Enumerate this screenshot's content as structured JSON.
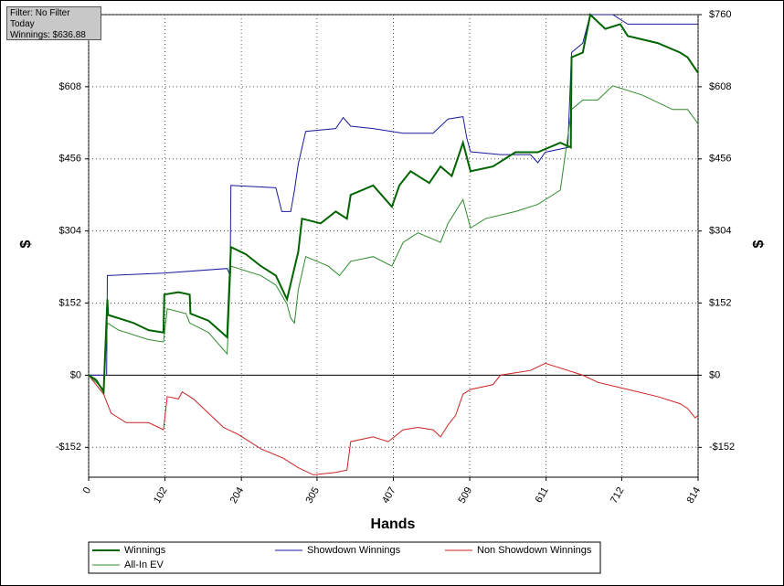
{
  "info": {
    "filter": "Filter: No Filter",
    "period": "Today",
    "winnings": "Winnings: $636.88"
  },
  "chart_data": {
    "type": "line",
    "xlabel": "Hands",
    "ylabel": "$",
    "y2label": "$",
    "xlim": [
      0,
      814
    ],
    "xticks": [
      0,
      102,
      204,
      305,
      407,
      509,
      611,
      712,
      814
    ],
    "ylim": [
      -215,
      760
    ],
    "yticks": [
      {
        "value": -152,
        "label": "-$152"
      },
      {
        "value": 0,
        "label": "$0"
      },
      {
        "value": 152,
        "label": "$152"
      },
      {
        "value": 304,
        "label": "$304"
      },
      {
        "value": 456,
        "label": "$456"
      },
      {
        "value": 608,
        "label": "$608"
      },
      {
        "value": 760,
        "label": "$760"
      }
    ],
    "y2lim": [
      -215,
      760
    ],
    "y2ticks": [
      {
        "value": -152,
        "label": "-$152"
      },
      {
        "value": 0,
        "label": "$0"
      },
      {
        "value": 152,
        "label": "$152"
      },
      {
        "value": 304,
        "label": "$304"
      },
      {
        "value": 456,
        "label": "$456"
      },
      {
        "value": 608,
        "label": "$608"
      },
      {
        "value": 760,
        "label": "$760"
      }
    ],
    "grid": true,
    "legend": "bottom",
    "series": [
      {
        "name": "Winnings",
        "color": "#006400",
        "x": [
          0,
          10,
          20,
          25,
          26,
          40,
          60,
          80,
          100,
          101,
          120,
          135,
          136,
          160,
          185,
          190,
          210,
          230,
          250,
          265,
          280,
          285,
          310,
          330,
          345,
          350,
          380,
          405,
          415,
          430,
          455,
          470,
          485,
          500,
          510,
          540,
          570,
          600,
          630,
          644,
          645,
          660,
          670,
          690,
          710,
          720,
          760,
          790,
          800,
          814
        ],
        "values": [
          0,
          -10,
          -35,
          160,
          127,
          120,
          110,
          95,
          90,
          170,
          175,
          170,
          130,
          115,
          80,
          270,
          255,
          230,
          210,
          160,
          260,
          330,
          320,
          345,
          330,
          380,
          400,
          355,
          400,
          430,
          405,
          440,
          420,
          490,
          430,
          440,
          470,
          470,
          490,
          480,
          670,
          680,
          760,
          730,
          740,
          715,
          700,
          680,
          670,
          637
        ]
      },
      {
        "name": "Showdown Winnings",
        "color": "#1a1a9c",
        "x": [
          0,
          24,
          25,
          100,
          185,
          189,
          190,
          250,
          258,
          270,
          275,
          280,
          290,
          330,
          340,
          350,
          380,
          420,
          460,
          480,
          500,
          505,
          510,
          550,
          590,
          600,
          610,
          640,
          645,
          660,
          670,
          700,
          720,
          814
        ],
        "values": [
          0,
          0,
          210,
          215,
          225,
          210,
          400,
          395,
          345,
          345,
          390,
          445,
          514,
          520,
          543,
          525,
          520,
          510,
          510,
          540,
          545,
          500,
          471,
          465,
          465,
          448,
          470,
          480,
          680,
          700,
          760,
          760,
          740,
          740
        ]
      },
      {
        "name": "Non Showdown Winnings",
        "color": "#cc2222",
        "x": [
          0,
          20,
          30,
          50,
          80,
          100,
          105,
          120,
          125,
          140,
          160,
          180,
          200,
          230,
          260,
          280,
          300,
          330,
          345,
          350,
          380,
          400,
          420,
          440,
          460,
          470,
          480,
          490,
          500,
          510,
          540,
          550,
          570,
          590,
          610,
          640,
          660,
          680,
          720,
          760,
          790,
          800,
          810,
          814
        ],
        "values": [
          0,
          -40,
          -80,
          -100,
          -100,
          -115,
          -45,
          -50,
          -35,
          -50,
          -80,
          -110,
          -125,
          -155,
          -175,
          -195,
          -210,
          -205,
          -200,
          -140,
          -130,
          -140,
          -115,
          -110,
          -115,
          -130,
          -105,
          -85,
          -40,
          -30,
          -20,
          0,
          5,
          10,
          25,
          10,
          0,
          -15,
          -30,
          -45,
          -60,
          -70,
          -90,
          -85
        ]
      },
      {
        "name": "All-In EV",
        "color": "#2e8b2e",
        "x": [
          0,
          20,
          25,
          40,
          80,
          100,
          105,
          130,
          135,
          160,
          185,
          190,
          230,
          250,
          265,
          270,
          275,
          280,
          290,
          320,
          335,
          350,
          380,
          405,
          420,
          440,
          470,
          480,
          500,
          510,
          530,
          570,
          600,
          630,
          645,
          660,
          680,
          700,
          740,
          780,
          800,
          814
        ],
        "values": [
          0,
          -30,
          110,
          95,
          75,
          70,
          140,
          130,
          110,
          90,
          45,
          230,
          210,
          190,
          150,
          120,
          110,
          180,
          250,
          230,
          210,
          240,
          250,
          230,
          280,
          300,
          280,
          320,
          370,
          310,
          330,
          345,
          360,
          390,
          560,
          580,
          580,
          610,
          590,
          560,
          560,
          530
        ]
      }
    ]
  }
}
